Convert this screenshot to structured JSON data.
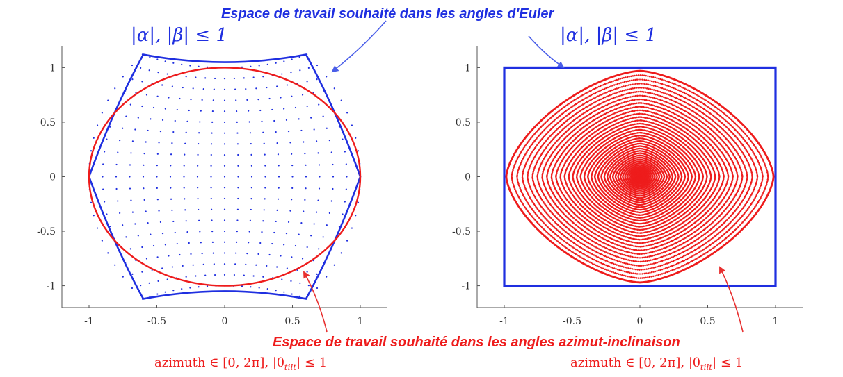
{
  "colors": {
    "euler": "#1f2fe0",
    "azimuth": "#ee1c1c",
    "arrow_blue": "#4a5ee8",
    "arrow_red": "#e83030",
    "axis": "#555555"
  },
  "annotations": {
    "euler_title": "Espace de travail souhaité dans les angles d'Euler",
    "euler_constraint": "|α|, |β| ≤ 1",
    "azimuth_title": "Espace de travail souhaité dans les angles azimut-inclinaison",
    "azimuth_constraint_prefix": "azimuth ∈ [0, 2π], |θ",
    "azimuth_constraint_sub": "tilt",
    "azimuth_constraint_suffix": "| ≤ 1"
  },
  "chart_data": [
    {
      "type": "scatter",
      "title": "",
      "xlabel": "",
      "ylabel": "",
      "xlim": [
        -1.2,
        1.2
      ],
      "ylim": [
        -1.2,
        1.2
      ],
      "x_ticks": [
        -1,
        -0.5,
        0,
        0.5,
        1
      ],
      "y_ticks": [
        1,
        0.5,
        0,
        -0.5,
        -1
      ],
      "x_tick_labels": [
        "-1",
        "-0.5",
        "0",
        "0.5",
        "1"
      ],
      "y_tick_labels": [
        "1",
        "0.5",
        "0",
        "-0.5",
        "-1"
      ],
      "grid": false,
      "series": [
        {
          "kind": "euler-region-boundary",
          "color": "#1f2fe0",
          "corners": [
            [
              -0.6,
              1.12
            ],
            [
              0.6,
              1.12
            ],
            [
              1.0,
              0.0
            ],
            [
              0.6,
              -1.12
            ],
            [
              -0.6,
              -1.12
            ],
            [
              -1.0,
              0.0
            ]
          ]
        },
        {
          "kind": "unit-disk-boundary",
          "color": "#ee1c1c",
          "radius": 1.0
        },
        {
          "kind": "sample-grid",
          "color": "#1f2fe0",
          "range": [
            -1,
            1
          ],
          "step": 0.1
        }
      ]
    },
    {
      "type": "scatter",
      "title": "",
      "xlabel": "",
      "ylabel": "",
      "xlim": [
        -1.2,
        1.2
      ],
      "ylim": [
        -1.2,
        1.2
      ],
      "x_ticks": [
        -1,
        -0.5,
        0,
        0.5,
        1
      ],
      "y_ticks": [
        1,
        0.5,
        0,
        -0.5,
        -1
      ],
      "x_tick_labels": [
        "-1",
        "-0.5",
        "0",
        "0.5",
        "1"
      ],
      "y_tick_labels": [
        "1",
        "0.5",
        "0",
        "-0.5",
        "-1"
      ],
      "grid": false,
      "series": [
        {
          "kind": "square-boundary",
          "color": "#1f2fe0",
          "xlim": [
            -1,
            1
          ],
          "ylim": [
            -1,
            1
          ]
        },
        {
          "kind": "rounded-diamond-boundary",
          "color": "#ee1c1c",
          "radius": 1.0
        },
        {
          "kind": "concentric-samples",
          "color": "#ee1c1c",
          "rings": 40
        }
      ]
    }
  ]
}
